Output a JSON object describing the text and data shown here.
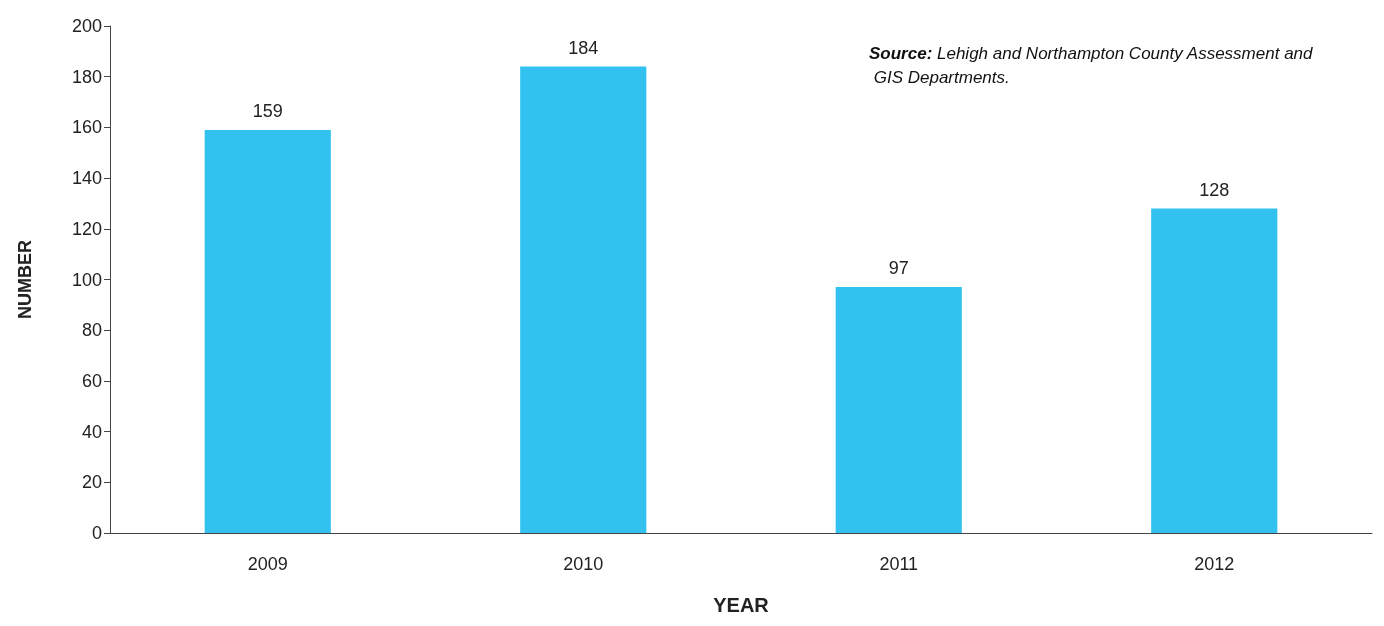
{
  "chart_data": {
    "type": "bar",
    "xlabel": "YEAR",
    "ylabel": "NUMBER",
    "categories": [
      "2009",
      "2010",
      "2011",
      "2012"
    ],
    "values": [
      159,
      184,
      97,
      128
    ],
    "color": "#33c2ef",
    "ylim": [
      0,
      200
    ],
    "yticks": [
      0,
      20,
      40,
      60,
      80,
      100,
      120,
      140,
      160,
      180,
      200
    ],
    "data_labels": true,
    "grid": false,
    "annotations": [
      "Source: Lehigh and Northampton County Assessment and GIS Departments."
    ]
  }
}
